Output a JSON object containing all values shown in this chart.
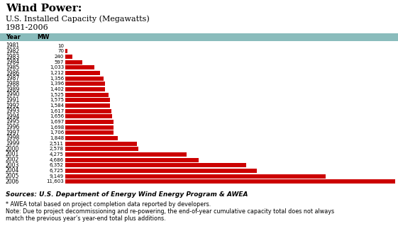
{
  "title_bold": "Wind Power:",
  "title_sub1": "U.S. Installed Capacity (Megawatts)",
  "title_sub2": "1981-2006",
  "header_year": "Year",
  "header_mw": "MW",
  "years": [
    1981,
    1982,
    1983,
    1984,
    1985,
    1986,
    1987,
    1988,
    1989,
    1990,
    1991,
    1992,
    1993,
    1994,
    1995,
    1996,
    1997,
    1998,
    1999,
    2000,
    2001,
    2002,
    2003,
    2004,
    2005,
    2006
  ],
  "values": [
    10,
    70,
    240,
    597,
    1033,
    1212,
    1356,
    1396,
    1402,
    1525,
    1575,
    1584,
    1617,
    1656,
    1697,
    1698,
    1706,
    1848,
    2511,
    2578,
    4275,
    4686,
    6352,
    6725,
    9149,
    11603
  ],
  "bar_color": "#cc0000",
  "header_bg": "#8abcbc",
  "bg_color": "#ffffff",
  "source_text": "Sources: U.S. Department of Energy Wind Energy Program & AWEA",
  "footnote1": "* AWEA total based on project completion data reported by developers.",
  "footnote2": "Note: Due to project decommissioning and re-powering, the end-of-year cumulative capacity total does not always",
  "footnote3": "match the previous year’s year-end total plus additions.",
  "max_val": 11603,
  "title_fontsize": 11,
  "sub_fontsize": 8,
  "label_fontsize": 5.5,
  "bar_label_fontsize": 5.0,
  "source_fontsize": 6.5,
  "footnote_fontsize": 5.8
}
